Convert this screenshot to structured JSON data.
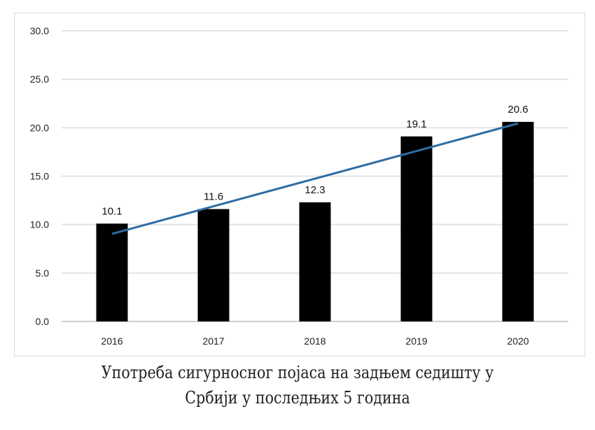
{
  "chart_data": {
    "type": "bar",
    "title": "Употреба сигурносног појаса на задњем седишту у Србији у последњих 5 година",
    "title_lines": [
      "Употреба сигурносног појаса на задњем седишту у",
      "Србији у последњих 5 година"
    ],
    "categories": [
      "2016",
      "2017",
      "2018",
      "2019",
      "2020"
    ],
    "values": [
      10.1,
      11.6,
      12.3,
      19.1,
      20.6
    ],
    "data_labels": [
      "10.1",
      "11.6",
      "12.3",
      "19.1",
      "20.6"
    ],
    "yticks": [
      "0.0",
      "5.0",
      "10.0",
      "15.0",
      "20.0",
      "25.0",
      "30.0"
    ],
    "ylim": [
      0,
      30
    ],
    "xlabel": "",
    "ylabel": "",
    "grid": true,
    "trendline": {
      "type": "linear",
      "color": "#2e6da4"
    },
    "colors": {
      "bar": "#000000",
      "grid": "#e3e3e3",
      "border": "#d9d9d9"
    }
  }
}
